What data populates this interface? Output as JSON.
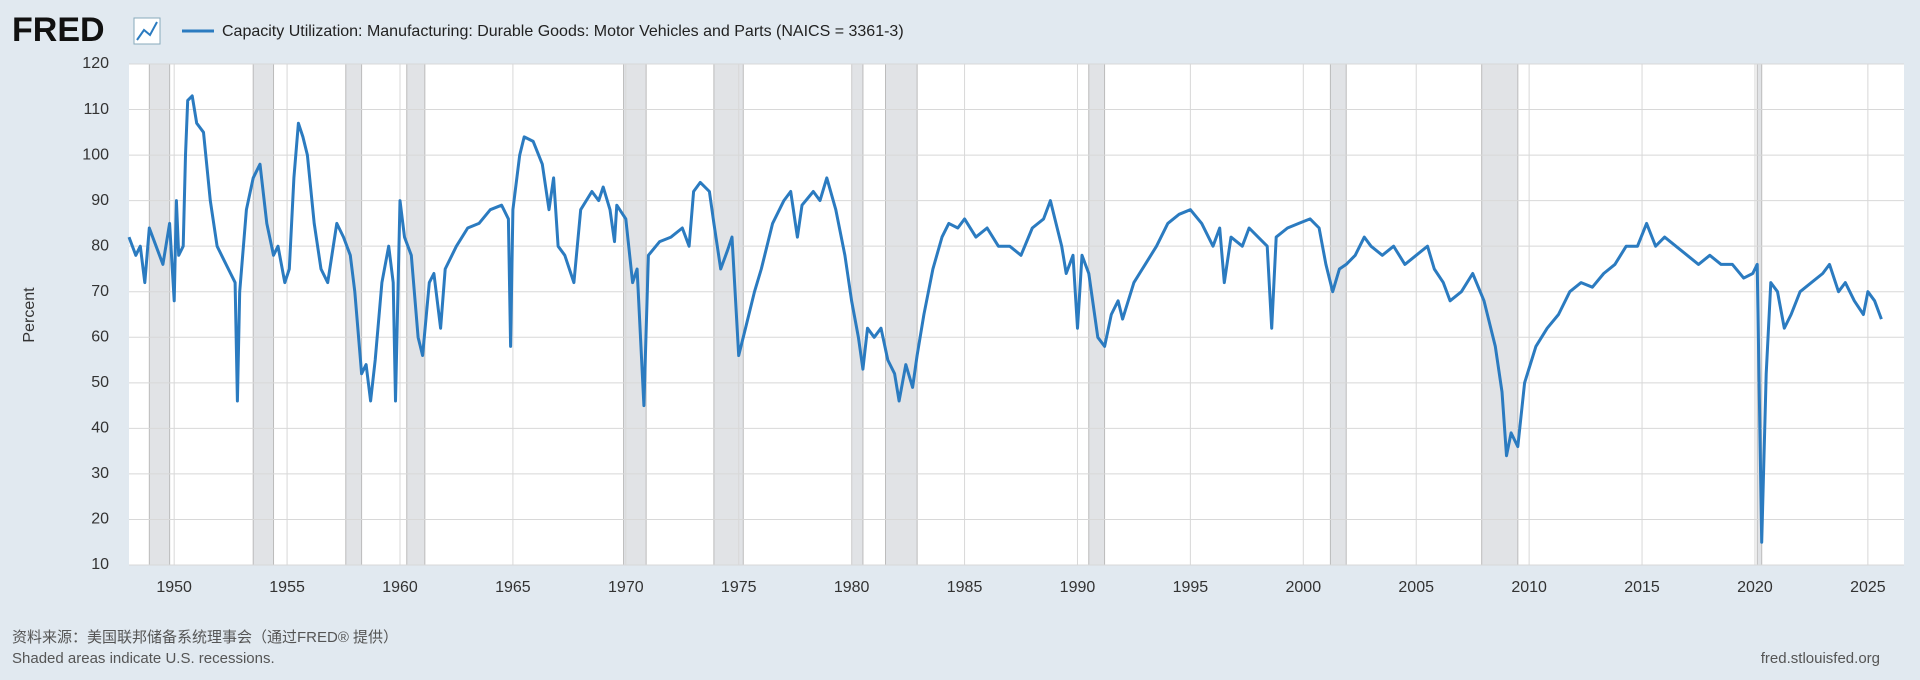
{
  "chart_data": {
    "type": "line",
    "logo": "FRED",
    "ylabel": "Percent",
    "source": "资料来源：美国联邦储备系统理事会（通过FRED® 提供）",
    "note": "Shaded areas indicate U.S. recessions.",
    "url": "fred.stlouisfed.org",
    "xlim": [
      1948,
      2026.6
    ],
    "xticks": [
      1950,
      1955,
      1960,
      1965,
      1970,
      1975,
      1980,
      1985,
      1990,
      1995,
      2000,
      2005,
      2010,
      2015,
      2020,
      2025
    ],
    "ylim": [
      10,
      120
    ],
    "yticks": [
      10,
      20,
      30,
      40,
      50,
      60,
      70,
      80,
      90,
      100,
      110,
      120
    ],
    "grid": true,
    "recessions": [
      [
        1948.9,
        1949.8
      ],
      [
        1953.5,
        1954.4
      ],
      [
        1957.6,
        1958.3
      ],
      [
        1960.3,
        1961.1
      ],
      [
        1969.9,
        1970.9
      ],
      [
        1973.9,
        1975.2
      ],
      [
        1980.0,
        1980.5
      ],
      [
        1981.5,
        1982.9
      ],
      [
        1990.5,
        1991.2
      ],
      [
        2001.2,
        2001.9
      ],
      [
        2007.9,
        2009.5
      ],
      [
        2020.1,
        2020.3
      ]
    ],
    "recession_color": "#e1e3e6",
    "x": [
      1948.0,
      1948.3,
      1948.5,
      1948.7,
      1948.9,
      1949.2,
      1949.5,
      1949.8,
      1950.0,
      1950.1,
      1950.2,
      1950.4,
      1950.5,
      1950.6,
      1950.8,
      1951.0,
      1951.3,
      1951.6,
      1951.9,
      1952.2,
      1952.5,
      1952.7,
      1952.8,
      1952.9,
      1953.2,
      1953.5,
      1953.8,
      1954.1,
      1954.4,
      1954.6,
      1954.9,
      1955.1,
      1955.3,
      1955.5,
      1955.7,
      1955.9,
      1956.2,
      1956.5,
      1956.8,
      1957.2,
      1957.5,
      1957.8,
      1958.0,
      1958.3,
      1958.5,
      1958.7,
      1958.9,
      1959.2,
      1959.5,
      1959.7,
      1959.8,
      1960.0,
      1960.2,
      1960.5,
      1960.8,
      1961.0,
      1961.3,
      1961.5,
      1961.8,
      1962.0,
      1962.5,
      1963.0,
      1963.5,
      1964.0,
      1964.5,
      1964.8,
      1964.9,
      1965.0,
      1965.3,
      1965.5,
      1965.9,
      1966.3,
      1966.6,
      1966.8,
      1967.0,
      1967.3,
      1967.7,
      1968.0,
      1968.5,
      1968.8,
      1969.0,
      1969.3,
      1969.5,
      1969.6,
      1970.0,
      1970.3,
      1970.5,
      1970.8,
      1971.0,
      1971.5,
      1972.0,
      1972.5,
      1972.8,
      1973.0,
      1973.3,
      1973.7,
      1973.9,
      1974.2,
      1974.5,
      1974.7,
      1975.0,
      1975.3,
      1975.7,
      1976.0,
      1976.5,
      1977.0,
      1977.3,
      1977.6,
      1977.8,
      1978.3,
      1978.6,
      1978.9,
      1979.3,
      1979.7,
      1980.0,
      1980.3,
      1980.5,
      1980.7,
      1981.0,
      1981.3,
      1981.6,
      1981.9,
      1982.1,
      1982.4,
      1982.7,
      1982.9,
      1983.2,
      1983.6,
      1984.0,
      1984.3,
      1984.7,
      1985.0,
      1985.5,
      1986.0,
      1986.5,
      1987.0,
      1987.5,
      1988.0,
      1988.5,
      1988.8,
      1989.0,
      1989.3,
      1989.5,
      1989.8,
      1990.0,
      1990.2,
      1990.5,
      1990.9,
      1991.2,
      1991.5,
      1991.8,
      1992.0,
      1992.5,
      1993.0,
      1993.5,
      1994.0,
      1994.5,
      1995.0,
      1995.5,
      1996.0,
      1996.3,
      1996.5,
      1996.8,
      1997.3,
      1997.6,
      1998.0,
      1998.4,
      1998.6,
      1998.8,
      1999.3,
      1999.8,
      2000.3,
      2000.7,
      2001.0,
      2001.3,
      2001.6,
      2001.9,
      2002.3,
      2002.7,
      2003.0,
      2003.5,
      2004.0,
      2004.5,
      2005.0,
      2005.5,
      2005.8,
      2006.2,
      2006.5,
      2007.0,
      2007.5,
      2008.0,
      2008.5,
      2008.8,
      2009.0,
      2009.2,
      2009.5,
      2009.8,
      2010.3,
      2010.8,
      2011.3,
      2011.8,
      2012.3,
      2012.8,
      2013.3,
      2013.8,
      2014.3,
      2014.8,
      2015.2,
      2015.6,
      2016.0,
      2016.5,
      2017.0,
      2017.5,
      2018.0,
      2018.5,
      2019.0,
      2019.5,
      2019.9,
      2020.1,
      2020.3,
      2020.5,
      2020.7,
      2021.0,
      2021.3,
      2021.6,
      2022.0,
      2022.5,
      2023.0,
      2023.3,
      2023.7,
      2024.0,
      2024.4,
      2024.8,
      2025.0,
      2025.3,
      2025.6
    ],
    "series": [
      {
        "name": "Capacity Utilization: Manufacturing: Durable Goods: Motor Vehicles and Parts (NAICS = 3361-3)",
        "color": "#2b7bc0",
        "values": [
          82,
          78,
          80,
          72,
          84,
          80,
          76,
          85,
          68,
          90,
          78,
          80,
          100,
          112,
          113,
          107,
          105,
          90,
          80,
          77,
          74,
          72,
          46,
          70,
          88,
          95,
          98,
          85,
          78,
          80,
          72,
          75,
          95,
          107,
          104,
          100,
          85,
          75,
          72,
          85,
          82,
          78,
          70,
          52,
          54,
          46,
          55,
          72,
          80,
          72,
          46,
          90,
          82,
          78,
          60,
          56,
          72,
          74,
          62,
          75,
          80,
          84,
          85,
          88,
          89,
          86,
          58,
          88,
          100,
          104,
          103,
          98,
          88,
          95,
          80,
          78,
          72,
          88,
          92,
          90,
          93,
          88,
          81,
          89,
          86,
          72,
          75,
          45,
          78,
          81,
          82,
          84,
          80,
          92,
          94,
          92,
          85,
          75,
          79,
          82,
          56,
          62,
          70,
          75,
          85,
          90,
          92,
          82,
          89,
          92,
          90,
          95,
          88,
          78,
          68,
          60,
          53,
          62,
          60,
          62,
          55,
          52,
          46,
          54,
          49,
          56,
          65,
          75,
          82,
          85,
          84,
          86,
          82,
          84,
          80,
          80,
          78,
          84,
          86,
          90,
          86,
          80,
          74,
          78,
          62,
          78,
          74,
          60,
          58,
          65,
          68,
          64,
          72,
          76,
          80,
          85,
          87,
          88,
          85,
          80,
          84,
          72,
          82,
          80,
          84,
          82,
          80,
          62,
          82,
          84,
          85,
          86,
          84,
          76,
          70,
          75,
          76,
          78,
          82,
          80,
          78,
          80,
          76,
          78,
          80,
          75,
          72,
          68,
          70,
          74,
          68,
          58,
          48,
          34,
          39,
          36,
          50,
          58,
          62,
          65,
          70,
          72,
          71,
          74,
          76,
          80,
          80,
          85,
          80,
          82,
          80,
          78,
          76,
          78,
          76,
          76,
          73,
          74,
          76,
          15,
          52,
          72,
          70,
          62,
          65,
          70,
          72,
          74,
          76,
          70,
          72,
          68,
          65,
          70,
          68,
          64
        ]
      }
    ]
  }
}
